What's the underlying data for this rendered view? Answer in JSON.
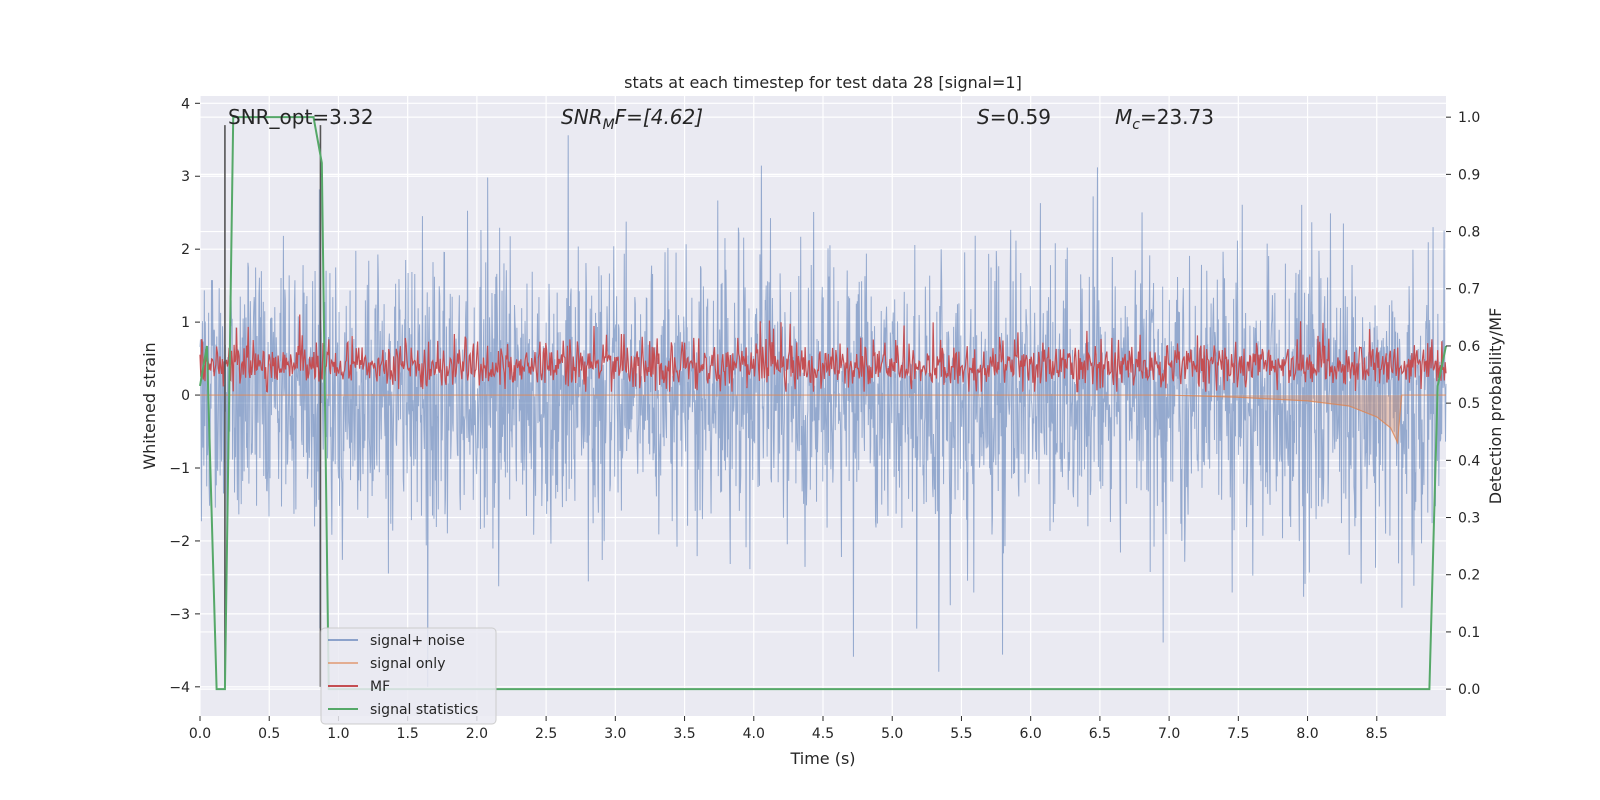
{
  "chart_data": {
    "type": "line",
    "title": "stats at each timestep for test data 28 [signal=1]",
    "xlabel": "Time (s)",
    "ylabel": "Whitened strain",
    "ylabel_right": "Detection probability/MF",
    "xlim": [
      0.0,
      9.0
    ],
    "ylim": [
      -4.4,
      4.1
    ],
    "ylim_right": [
      -0.047,
      1.037
    ],
    "x_ticks": [
      "0.0",
      "0.5",
      "1.0",
      "1.5",
      "2.0",
      "2.5",
      "3.0",
      "3.5",
      "4.0",
      "4.5",
      "5.0",
      "5.5",
      "6.0",
      "6.5",
      "7.0",
      "7.5",
      "8.0",
      "8.5"
    ],
    "y_ticks": [
      "4",
      "3",
      "2",
      "1",
      "0",
      "−1",
      "−2",
      "−3",
      "−4"
    ],
    "y_ticks_right": [
      "1.0",
      "0.9",
      "0.8",
      "0.7",
      "0.6",
      "0.5",
      "0.4",
      "0.3",
      "0.2",
      "0.1",
      "0.0"
    ],
    "grid": true,
    "legend_position": "lower-left",
    "annotations": {
      "snr_opt": "SNR_opt=3.32",
      "snr_mf_base": "SNR",
      "snr_mf_sub": "M",
      "snr_mf_rest": "F=[4.62]",
      "s_var": "S",
      "s_rest": "=0.59",
      "mc_var": "M",
      "mc_sub": "c",
      "mc_rest": "=23.73"
    },
    "markers": {
      "signal_window_x": [
        0.18,
        0.87
      ],
      "ymax_strain": 3.7
    },
    "series": [
      {
        "name": "signal+ noise",
        "color": "#4c72b0",
        "axis": "left",
        "description": "noisy whitened strain, roughly within [-2.5, 3.0], occasional spikes to about 3.6 and -4"
      },
      {
        "name": "signal only",
        "color": "#dd8452",
        "axis": "left",
        "description": "small chirp near 0, amplitude growing to about -0.65 near t=8.65",
        "points": [
          [
            0.0,
            0.0
          ],
          [
            7.0,
            0.0
          ],
          [
            7.5,
            -0.03
          ],
          [
            8.0,
            -0.08
          ],
          [
            8.3,
            -0.15
          ],
          [
            8.5,
            -0.3
          ],
          [
            8.6,
            -0.45
          ],
          [
            8.65,
            -0.65
          ],
          [
            8.68,
            0.0
          ],
          [
            9.0,
            0.0
          ]
        ]
      },
      {
        "name": "MF",
        "color": "#c44e52",
        "axis": "right",
        "description": "matched-filter output, roughly 0.52-0.62, spikes to about 0.65"
      },
      {
        "name": "signal statistics",
        "color": "#55a868",
        "axis": "right",
        "points": [
          [
            0.0,
            0.53
          ],
          [
            0.05,
            0.6
          ],
          [
            0.12,
            0.0
          ],
          [
            0.18,
            0.0
          ],
          [
            0.24,
            1.0
          ],
          [
            0.82,
            1.0
          ],
          [
            0.88,
            0.92
          ],
          [
            0.93,
            0.0
          ],
          [
            8.35,
            0.0
          ],
          [
            8.88,
            0.0
          ],
          [
            8.94,
            0.53
          ],
          [
            9.0,
            0.6
          ]
        ]
      }
    ]
  }
}
